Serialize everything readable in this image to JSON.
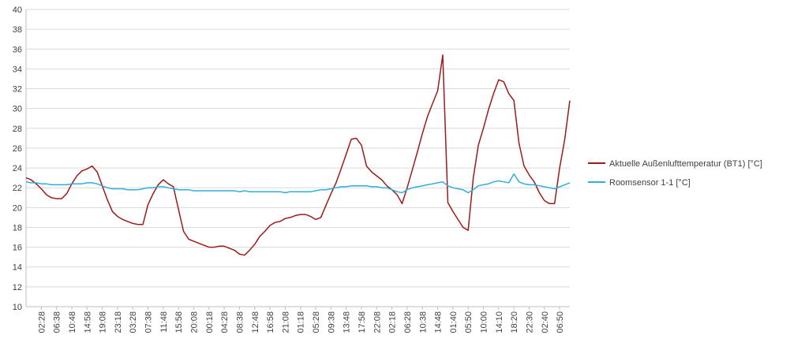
{
  "chart_data": {
    "type": "line",
    "categories": [
      null,
      null,
      null,
      "02:28",
      null,
      null,
      "06:38",
      null,
      null,
      "10:48",
      null,
      null,
      "14:58",
      null,
      null,
      "19:08",
      null,
      null,
      "23:18",
      null,
      null,
      "03:28",
      null,
      null,
      "07:38",
      null,
      null,
      "11:48",
      null,
      null,
      "15:58",
      null,
      null,
      "20:08",
      null,
      null,
      "00:18",
      null,
      null,
      "04:28",
      null,
      null,
      "08:38",
      null,
      null,
      "12:48",
      null,
      null,
      "16:58",
      null,
      null,
      "21:08",
      null,
      null,
      "01:18",
      null,
      null,
      "05:28",
      null,
      null,
      "09:38",
      null,
      null,
      "13:48",
      null,
      null,
      "17:58",
      null,
      null,
      "22:08",
      null,
      null,
      "02:18",
      null,
      null,
      "06:28",
      null,
      null,
      "10:38",
      null,
      null,
      "14:48",
      null,
      null,
      "01:40",
      null,
      null,
      "05:50",
      null,
      null,
      "10:00",
      null,
      null,
      "14:10",
      null,
      null,
      "18:20",
      null,
      null,
      "22:30",
      null,
      null,
      "02:40",
      null,
      null,
      "06:50",
      null,
      null
    ],
    "series": [
      {
        "name": "Aktuelle Außenlufttemperatur (BT1) [°C]",
        "color": "#9e1a1a",
        "values": [
          23.0,
          22.8,
          22.4,
          21.9,
          21.3,
          21.0,
          20.9,
          20.9,
          21.4,
          22.4,
          23.2,
          23.7,
          23.9,
          24.2,
          23.6,
          22.2,
          20.8,
          19.6,
          19.1,
          18.8,
          18.6,
          18.4,
          18.3,
          18.3,
          20.3,
          21.4,
          22.3,
          22.8,
          22.4,
          22.1,
          19.8,
          17.6,
          16.8,
          16.6,
          16.4,
          16.2,
          16.0,
          16.0,
          16.1,
          16.1,
          15.9,
          15.7,
          15.3,
          15.2,
          15.7,
          16.3,
          17.1,
          17.6,
          18.2,
          18.5,
          18.6,
          18.9,
          19.0,
          19.2,
          19.3,
          19.3,
          19.1,
          18.8,
          19.0,
          20.2,
          21.4,
          22.5,
          23.9,
          25.4,
          26.9,
          27.0,
          26.3,
          24.2,
          23.6,
          23.2,
          22.8,
          22.2,
          21.8,
          21.3,
          20.4,
          22.0,
          23.8,
          25.6,
          27.5,
          29.2,
          30.5,
          31.8,
          35.4,
          20.5,
          19.6,
          18.8,
          18.0,
          17.7,
          23.0,
          26.3,
          28.0,
          29.9,
          31.5,
          32.9,
          32.7,
          31.5,
          30.8,
          26.5,
          24.2,
          23.3,
          22.6,
          21.5,
          20.7,
          20.4,
          20.4,
          24.0,
          26.9,
          30.8
        ]
      },
      {
        "name": "Roomsensor 1-1 [°C]",
        "color": "#2eaedb",
        "values": [
          22.6,
          22.5,
          22.5,
          22.4,
          22.4,
          22.3,
          22.3,
          22.3,
          22.3,
          22.4,
          22.4,
          22.4,
          22.5,
          22.5,
          22.4,
          22.2,
          22.0,
          21.9,
          21.9,
          21.9,
          21.8,
          21.8,
          21.8,
          21.9,
          22.0,
          22.0,
          22.1,
          22.1,
          22.0,
          21.9,
          21.8,
          21.8,
          21.8,
          21.7,
          21.7,
          21.7,
          21.7,
          21.7,
          21.7,
          21.7,
          21.7,
          21.7,
          21.6,
          21.7,
          21.6,
          21.6,
          21.6,
          21.6,
          21.6,
          21.6,
          21.6,
          21.5,
          21.6,
          21.6,
          21.6,
          21.6,
          21.6,
          21.7,
          21.8,
          21.8,
          21.9,
          22.0,
          22.1,
          22.1,
          22.2,
          22.2,
          22.2,
          22.2,
          22.1,
          22.1,
          22.0,
          22.0,
          21.8,
          21.6,
          21.5,
          21.8,
          22.0,
          22.1,
          22.2,
          22.3,
          22.4,
          22.5,
          22.6,
          22.2,
          22.0,
          21.9,
          21.8,
          21.5,
          21.8,
          22.2,
          22.3,
          22.4,
          22.6,
          22.7,
          22.6,
          22.5,
          23.4,
          22.6,
          22.4,
          22.3,
          22.3,
          22.2,
          22.1,
          22.0,
          21.9,
          22.1,
          22.3,
          22.5
        ]
      }
    ],
    "ylim": [
      10,
      40
    ],
    "yticks": [
      10,
      12,
      14,
      16,
      18,
      20,
      22,
      24,
      26,
      28,
      30,
      32,
      34,
      36,
      38,
      40
    ],
    "grid": true,
    "legend": "right"
  }
}
